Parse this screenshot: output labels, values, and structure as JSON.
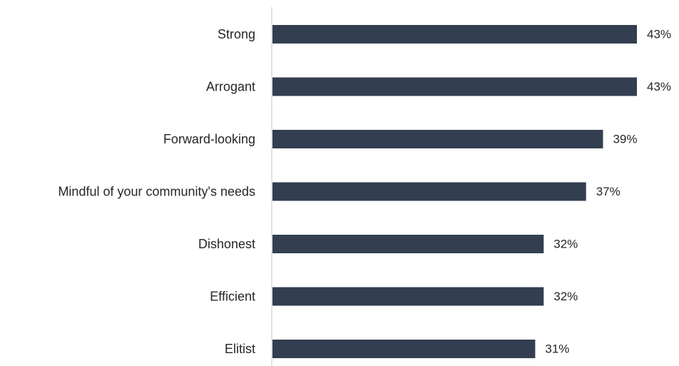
{
  "chart_data": {
    "type": "bar",
    "orientation": "horizontal",
    "categories": [
      "Strong",
      "Arrogant",
      "Forward-looking",
      "Mindful of your community's needs",
      "Dishonest",
      "Efficient",
      "Elitist"
    ],
    "values": [
      43,
      43,
      39,
      37,
      32,
      32,
      31
    ],
    "value_labels": [
      "43%",
      "43%",
      "39%",
      "37%",
      "32%",
      "32%",
      "31%"
    ],
    "value_unit": "%",
    "xlim": [
      0,
      43
    ],
    "grid": false,
    "legend": "none",
    "bar_color": "#333f50",
    "axis_color": "#d9d9d9",
    "text_color": "#262626"
  }
}
